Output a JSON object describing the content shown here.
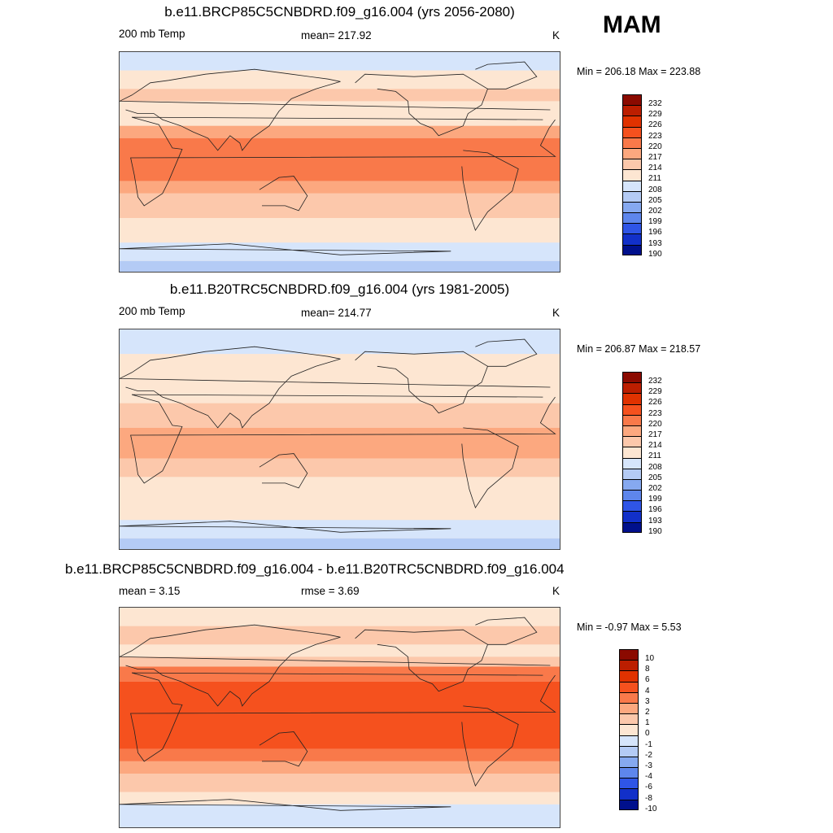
{
  "season": "MAM",
  "panels": [
    {
      "title": "b.e11.BRCP85C5CNBDRD.f09_g16.004 (yrs 2056-2080)",
      "left_label": "200 mb Temp",
      "center_label": "mean= 217.92",
      "unit": "K",
      "minmax": "Min = 206.18 Max = 223.88",
      "colorbar_labels": [
        "232",
        "229",
        "226",
        "223",
        "220",
        "217",
        "214",
        "211",
        "208",
        "205",
        "202",
        "199",
        "196",
        "193",
        "190"
      ],
      "bands": [
        {
          "lat": 90,
          "level": "#d6e5fb"
        },
        {
          "lat": 75,
          "level": "#fde6d2"
        },
        {
          "lat": 60,
          "level": "#fcc8ab"
        },
        {
          "lat": 50,
          "level": "#fde6d2"
        },
        {
          "lat": 30,
          "level": "#fca87f"
        },
        {
          "lat": 20,
          "level": "#f9794a"
        },
        {
          "lat": -15,
          "level": "#fca87f"
        },
        {
          "lat": -25,
          "level": "#fcc8ab"
        },
        {
          "lat": -45,
          "level": "#fde6d2"
        },
        {
          "lat": -65,
          "level": "#d6e5fb"
        },
        {
          "lat": -80,
          "level": "#b4cbf5"
        }
      ]
    },
    {
      "title": "b.e11.B20TRC5CNBDRD.f09_g16.004 (yrs 1981-2005)",
      "left_label": "200 mb Temp",
      "center_label": "mean= 214.77",
      "unit": "K",
      "minmax": "Min = 206.87 Max = 218.57",
      "colorbar_labels": [
        "232",
        "229",
        "226",
        "223",
        "220",
        "217",
        "214",
        "211",
        "208",
        "205",
        "202",
        "199",
        "196",
        "193",
        "190"
      ],
      "bands": [
        {
          "lat": 90,
          "level": "#d6e5fb"
        },
        {
          "lat": 70,
          "level": "#fde6d2"
        },
        {
          "lat": 40,
          "level": "#fde6d2"
        },
        {
          "lat": 30,
          "level": "#fcc8ab"
        },
        {
          "lat": 10,
          "level": "#fca87f"
        },
        {
          "lat": -15,
          "level": "#fcc8ab"
        },
        {
          "lat": -30,
          "level": "#fde6d2"
        },
        {
          "lat": -65,
          "level": "#d6e5fb"
        },
        {
          "lat": -80,
          "level": "#b4cbf5"
        }
      ]
    },
    {
      "title": "b.e11.BRCP85C5CNBDRD.f09_g16.004 - b.e11.B20TRC5CNBDRD.f09_g16.004",
      "left_label": "mean =   3.15",
      "center_label": "rmse =   3.69",
      "unit": "K",
      "minmax": "Min =  -0.97 Max =   5.53",
      "colorbar_labels": [
        "10",
        "8",
        "6",
        "4",
        "3",
        "2",
        "1",
        "0",
        "-1",
        "-2",
        "-3",
        "-4",
        "-6",
        "-8",
        "-10"
      ],
      "bands": [
        {
          "lat": 90,
          "level": "#fde6d2"
        },
        {
          "lat": 75,
          "level": "#fcc8ab"
        },
        {
          "lat": 60,
          "level": "#fde6d2"
        },
        {
          "lat": 50,
          "level": "#fcc8ab"
        },
        {
          "lat": 42,
          "level": "#f9794a"
        },
        {
          "lat": 30,
          "level": "#f5511e"
        },
        {
          "lat": -25,
          "level": "#f9794a"
        },
        {
          "lat": -35,
          "level": "#fca87f"
        },
        {
          "lat": -45,
          "level": "#fcc8ab"
        },
        {
          "lat": -60,
          "level": "#fde6d2"
        },
        {
          "lat": -70,
          "level": "#d6e5fb"
        }
      ]
    }
  ],
  "colorbar_colors": [
    "#8b0a00",
    "#bc1e00",
    "#e03200",
    "#f5511e",
    "#f9794a",
    "#fca87f",
    "#fcc8ab",
    "#fde6d2",
    "#d6e5fb",
    "#b4cbf5",
    "#86a9f0",
    "#5e86ec",
    "#2f55e6",
    "#1230c9",
    "#00108c"
  ]
}
